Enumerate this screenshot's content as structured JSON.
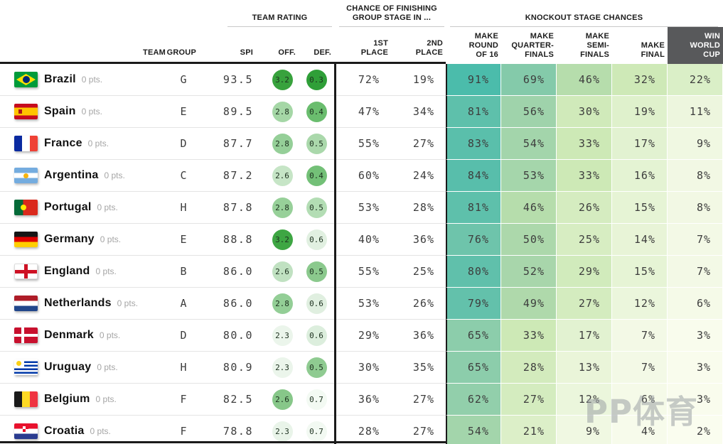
{
  "sections": {
    "rating": "TEAM RATING",
    "group_stage": "CHANCE OF FINISHING\nGROUP STAGE IN ...",
    "knockout": "KNOCKOUT STAGE CHANCES"
  },
  "columns": {
    "team": "TEAM",
    "group": "GROUP",
    "spi": "SPI",
    "off": "OFF.",
    "def": "DEF.",
    "first": "1ST\nPLACE",
    "second": "2ND\nPLACE",
    "r16": "MAKE\nROUND\nOF 16",
    "qf": "MAKE\nQUARTER-\nFINALS",
    "sf": "MAKE\nSEMI-\nFINALS",
    "final": "MAKE\nFINAL",
    "win": "WIN\nWORLD\nCUP"
  },
  "rows": [
    {
      "team": "Brazil",
      "pts": "0 pts.",
      "group": "G",
      "spi": "93.5",
      "off": "3.2",
      "def": "0.3",
      "off_color": "#38a23d",
      "def_color": "#2f9f38",
      "first": 72,
      "second": 19,
      "r16": 91,
      "qf": 69,
      "sf": 46,
      "final": 32,
      "win": 22,
      "flag": "br"
    },
    {
      "team": "Spain",
      "pts": "0 pts.",
      "group": "E",
      "spi": "89.5",
      "off": "2.8",
      "def": "0.4",
      "off_color": "#a5d7a6",
      "def_color": "#6abd6e",
      "first": 47,
      "second": 34,
      "r16": 81,
      "qf": 56,
      "sf": 30,
      "final": 19,
      "win": 11,
      "flag": "es"
    },
    {
      "team": "France",
      "pts": "0 pts.",
      "group": "D",
      "spi": "87.7",
      "off": "2.8",
      "def": "0.5",
      "off_color": "#95cf98",
      "def_color": "#aad8ab",
      "first": 55,
      "second": 27,
      "r16": 83,
      "qf": 54,
      "sf": 33,
      "final": 17,
      "win": 9,
      "flag": "fr"
    },
    {
      "team": "Argentina",
      "pts": "0 pts.",
      "group": "C",
      "spi": "87.2",
      "off": "2.6",
      "def": "0.4",
      "off_color": "#c6e5c6",
      "def_color": "#73c077",
      "first": 60,
      "second": 24,
      "r16": 84,
      "qf": 53,
      "sf": 33,
      "final": 16,
      "win": 8,
      "flag": "ar"
    },
    {
      "team": "Portugal",
      "pts": "0 pts.",
      "group": "H",
      "spi": "87.8",
      "off": "2.8",
      "def": "0.5",
      "off_color": "#97d099",
      "def_color": "#b3ddb4",
      "first": 53,
      "second": 28,
      "r16": 81,
      "qf": 46,
      "sf": 26,
      "final": 15,
      "win": 8,
      "flag": "pt"
    },
    {
      "team": "Germany",
      "pts": "0 pts.",
      "group": "E",
      "spi": "88.8",
      "off": "3.2",
      "def": "0.6",
      "off_color": "#3ea643",
      "def_color": "#e1f0e1",
      "first": 40,
      "second": 36,
      "r16": 76,
      "qf": 50,
      "sf": 25,
      "final": 14,
      "win": 7,
      "flag": "de"
    },
    {
      "team": "England",
      "pts": "0 pts.",
      "group": "B",
      "spi": "86.0",
      "off": "2.6",
      "def": "0.5",
      "off_color": "#c0e1c1",
      "def_color": "#8bc98d",
      "first": 55,
      "second": 25,
      "r16": 80,
      "qf": 52,
      "sf": 29,
      "final": 15,
      "win": 7,
      "flag": "en"
    },
    {
      "team": "Netherlands",
      "pts": "0 pts.",
      "group": "A",
      "spi": "86.0",
      "off": "2.8",
      "def": "0.6",
      "off_color": "#93ce96",
      "def_color": "#e0efe0",
      "first": 53,
      "second": 26,
      "r16": 79,
      "qf": 49,
      "sf": 27,
      "final": 12,
      "win": 6,
      "flag": "nl"
    },
    {
      "team": "Denmark",
      "pts": "0 pts.",
      "group": "D",
      "spi": "80.0",
      "off": "2.3",
      "def": "0.6",
      "off_color": "#ebf5eb",
      "def_color": "#dceedd",
      "first": 29,
      "second": 36,
      "r16": 65,
      "qf": 33,
      "sf": 17,
      "final": 7,
      "win": 3,
      "flag": "dk"
    },
    {
      "team": "Uruguay",
      "pts": "0 pts.",
      "group": "H",
      "spi": "80.9",
      "off": "2.3",
      "def": "0.5",
      "off_color": "#ebf5eb",
      "def_color": "#8fcb91",
      "first": 30,
      "second": 35,
      "r16": 65,
      "qf": 28,
      "sf": 13,
      "final": 7,
      "win": 3,
      "flag": "uy"
    },
    {
      "team": "Belgium",
      "pts": "0 pts.",
      "group": "F",
      "spi": "82.5",
      "off": "2.6",
      "def": "0.7",
      "off_color": "#87c789",
      "def_color": "#f3faf3",
      "first": 36,
      "second": 27,
      "r16": 62,
      "qf": 27,
      "sf": 12,
      "final": 6,
      "win": 3,
      "flag": "be"
    },
    {
      "team": "Croatia",
      "pts": "0 pts.",
      "group": "F",
      "spi": "78.8",
      "off": "2.3",
      "def": "0.7",
      "off_color": "#e9f4e9",
      "def_color": "#f2f9f2",
      "first": 28,
      "second": 27,
      "r16": 54,
      "qf": 21,
      "sf": 9,
      "final": 4,
      "win": 2,
      "flag": "hr"
    }
  ],
  "watermark": "PP体育",
  "colors": {
    "win_header_bg": "#58595b",
    "win_header_text": "#ffffff",
    "scale_low": "#fdfef3",
    "scale_high": "#3bb7a9",
    "header_line": "#1a1a1a"
  }
}
